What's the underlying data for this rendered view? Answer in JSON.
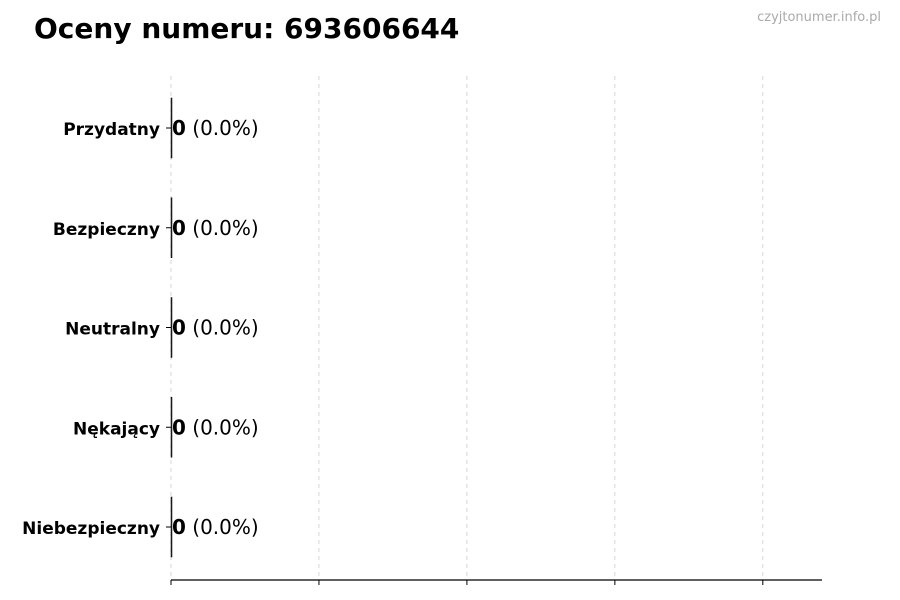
{
  "chart_data": {
    "type": "bar",
    "orientation": "horizontal",
    "title": "Oceny numeru: 693606644",
    "watermark": "czyjtonumer.info.pl",
    "categories": [
      "Przydatny",
      "Bezpieczny",
      "Neutralny",
      "Nękający",
      "Niebezpieczny"
    ],
    "values": [
      0,
      0,
      0,
      0,
      0
    ],
    "value_labels": [
      "0",
      "0",
      "0",
      "0",
      "0"
    ],
    "percent_labels": [
      "(0.0%)",
      "(0.0%)",
      "(0.0%)",
      "(0.0%)",
      "(0.0%)"
    ],
    "xlim": [
      0,
      4.4
    ],
    "x_ticks": [
      0,
      1,
      2,
      3,
      4
    ],
    "grid": "vertical dashed",
    "xlabel": "",
    "ylabel": ""
  }
}
